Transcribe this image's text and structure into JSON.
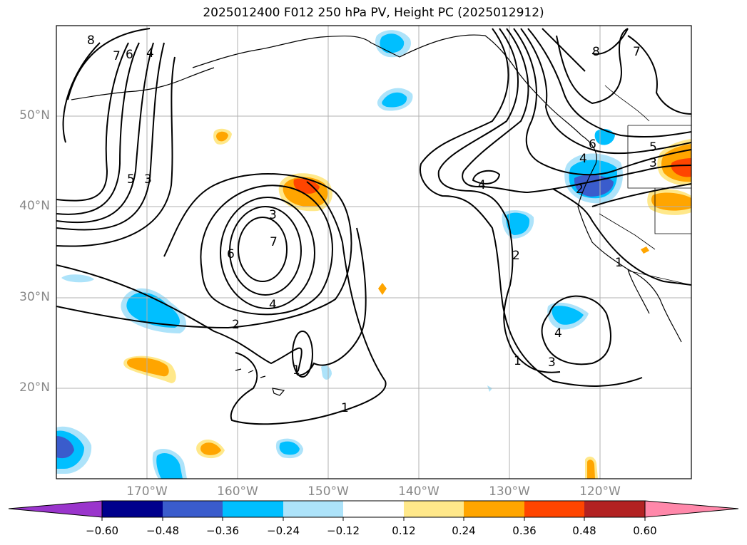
{
  "title": "2025012400 F012 250 hPa PV, Height PC (2025012912)",
  "lat_labels": [
    "50°N",
    "40°N",
    "30°N",
    "20°N"
  ],
  "lon_labels": [
    "170°W",
    "160°W",
    "150°W",
    "140°W",
    "130°W",
    "120°W"
  ],
  "colorbar": {
    "ticks": [
      "−0.60",
      "−0.48",
      "−0.36",
      "−0.24",
      "−0.12",
      "0.12",
      "0.24",
      "0.36",
      "0.48",
      "0.60"
    ],
    "colors": [
      "#9a35cc",
      "#00008c",
      "#3a5ccc",
      "#00bfff",
      "#ade3fa",
      "#ffffff",
      "#ffe88a",
      "#ffa500",
      "#ff4500",
      "#b22222",
      "#ff88aa"
    ]
  },
  "contour_labels": [
    "8",
    "7",
    "6",
    "4",
    "5",
    "3",
    "3",
    "7",
    "6",
    "4",
    "2",
    "1",
    "1",
    "4",
    "2",
    "3",
    "1",
    "4",
    "6",
    "4",
    "5",
    "3",
    "2",
    "1",
    "8",
    "7"
  ],
  "colors": {
    "pv_purple": "#9a35cc",
    "pv_navy": "#00008c",
    "pv_mid_blue": "#3a5ccc",
    "pv_blue": "#00bfff",
    "pv_light_blue": "#ade3fa",
    "pv_yellow": "#ffe88a",
    "pv_orange": "#ffa500",
    "pv_red_orange": "#ff4500",
    "grid": "#b0b0b0",
    "axis_label": "#888888"
  }
}
